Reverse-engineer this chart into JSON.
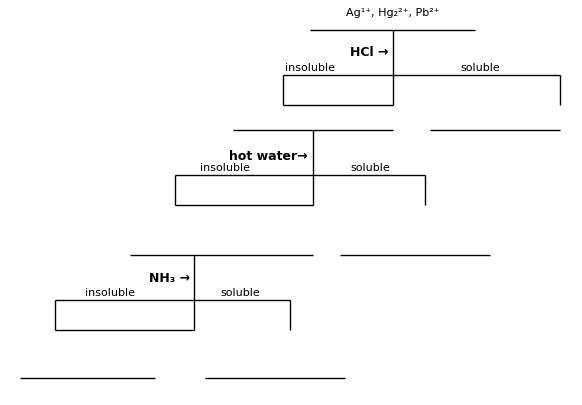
{
  "title_text": "Ag¹⁺, Hg₂²⁺, Pb²⁺",
  "hcl_label": "HCl →",
  "hotwater_label": "hot water→",
  "nh3_label": "NH₃ →",
  "insoluble": "insoluble",
  "soluble": "soluble",
  "line_color": "#000000",
  "bg_color": "#ffffff",
  "figsize": [
    5.82,
    4.05
  ],
  "dpi": 100
}
